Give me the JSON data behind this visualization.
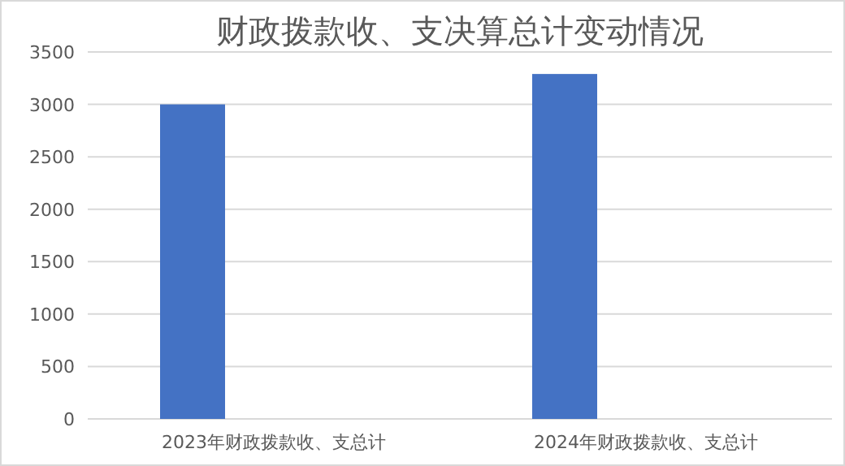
{
  "chart_data": {
    "type": "bar",
    "title": "财政拨款收、支决算总计变动情况",
    "categories": [
      "2023年财政拨款收、支总计",
      "2024年财政拨款收、支总计"
    ],
    "values": [
      3000,
      3290
    ],
    "color": "#4472c4",
    "ylim": [
      0,
      3500
    ],
    "yticks": [
      0,
      500,
      1000,
      1500,
      2000,
      2500,
      3000,
      3500
    ],
    "grid": "y"
  }
}
